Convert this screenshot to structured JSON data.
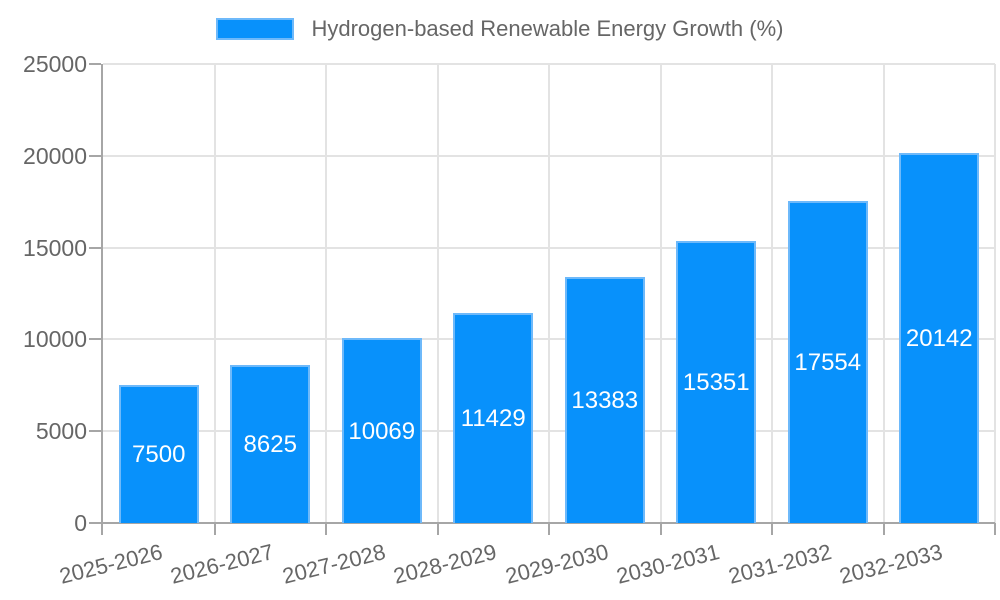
{
  "chart_data": {
    "type": "bar",
    "title": "Hydrogen-based Renewable Energy Growth (%)",
    "categories": [
      "2025-2026",
      "2026-2027",
      "2027-2028",
      "2028-2029",
      "2029-2030",
      "2030-2031",
      "2031-2032",
      "2032-2033"
    ],
    "series": [
      {
        "name": "Hydrogen-based Renewable Energy Growth (%)",
        "values": [
          7500,
          8625,
          10069,
          11429,
          13383,
          15351,
          17554,
          20142
        ]
      }
    ],
    "value_labels": [
      "7500",
      "8625",
      "10069",
      "11429",
      "13383",
      "15351",
      "17554",
      "20142"
    ],
    "xlabel": "",
    "ylabel": "",
    "ylim": [
      0,
      25000
    ],
    "yticks": [
      0,
      5000,
      10000,
      15000,
      20000,
      25000
    ],
    "ytick_labels": [
      "0",
      "5000",
      "10000",
      "15000",
      "20000",
      "25000"
    ],
    "legend_position": "top",
    "grid": "on",
    "colors": {
      "bar_fill": "#0891fb",
      "bar_border": "#6eb9fa",
      "grid_line": "#e3e3e3",
      "axis_line": "#a6a6a6",
      "tick_text": "#666666",
      "value_label_text": "#ffffff",
      "background": "#ffffff"
    }
  }
}
